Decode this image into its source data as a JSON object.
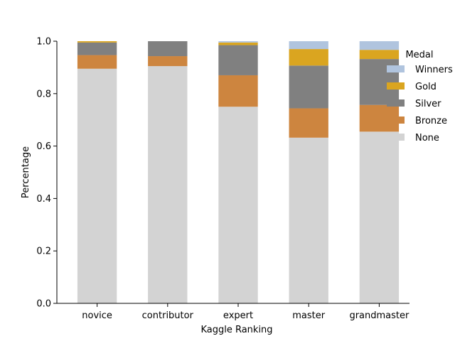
{
  "chart_data": {
    "type": "bar",
    "stacked": true,
    "categories": [
      "novice",
      "contributor",
      "expert",
      "master",
      "grandmaster"
    ],
    "xlabel": "Kaggle Ranking",
    "ylabel": "Percentage",
    "ylim": [
      0,
      1.0
    ],
    "yticks": [
      0.0,
      0.2,
      0.4,
      0.6,
      0.8,
      1.0
    ],
    "ytick_labels": [
      "0.0",
      "0.2",
      "0.4",
      "0.6",
      "0.8",
      "1.0"
    ],
    "grid": false,
    "legend_title": "Medal",
    "legend_position": "right",
    "series": [
      {
        "name": "None",
        "color": "#d3d3d3",
        "values": [
          0.895,
          0.905,
          0.75,
          0.632,
          0.655
        ]
      },
      {
        "name": "Bronze",
        "color": "#cd853f",
        "values": [
          0.052,
          0.038,
          0.12,
          0.112,
          0.102
        ]
      },
      {
        "name": "Silver",
        "color": "#808080",
        "values": [
          0.048,
          0.057,
          0.115,
          0.163,
          0.175
        ]
      },
      {
        "name": "Gold",
        "color": "#daa520",
        "values": [
          0.005,
          0.0,
          0.01,
          0.063,
          0.035
        ]
      },
      {
        "name": "Winners",
        "color": "#b0c4de",
        "values": [
          0.0,
          0.0,
          0.005,
          0.03,
          0.033
        ]
      }
    ]
  }
}
